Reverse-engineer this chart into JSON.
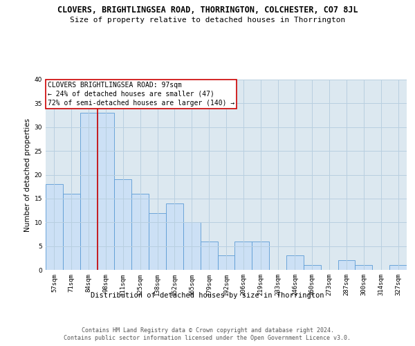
{
  "title_line1": "CLOVERS, BRIGHTLINGSEA ROAD, THORRINGTON, COLCHESTER, CO7 8JL",
  "title_line2": "Size of property relative to detached houses in Thorrington",
  "xlabel": "Distribution of detached houses by size in Thorrington",
  "ylabel": "Number of detached properties",
  "categories": [
    "57sqm",
    "71sqm",
    "84sqm",
    "98sqm",
    "111sqm",
    "125sqm",
    "138sqm",
    "152sqm",
    "165sqm",
    "179sqm",
    "192sqm",
    "206sqm",
    "219sqm",
    "233sqm",
    "246sqm",
    "260sqm",
    "273sqm",
    "287sqm",
    "300sqm",
    "314sqm",
    "327sqm"
  ],
  "values": [
    18,
    16,
    33,
    33,
    19,
    16,
    12,
    14,
    10,
    6,
    3,
    6,
    6,
    0,
    3,
    1,
    0,
    2,
    1,
    0,
    1
  ],
  "bar_color": "#cce0f5",
  "bar_edge_color": "#5b9bd5",
  "vline_color": "#cc0000",
  "vline_index": 2.5,
  "annotation_text": "CLOVERS BRIGHTLINGSEA ROAD: 97sqm\n← 24% of detached houses are smaller (47)\n72% of semi-detached houses are larger (140) →",
  "annotation_box_color": "#ffffff",
  "annotation_box_edge_color": "#cc0000",
  "ylim": [
    0,
    40
  ],
  "yticks": [
    0,
    5,
    10,
    15,
    20,
    25,
    30,
    35,
    40
  ],
  "grid_color": "#b8cfe0",
  "background_color": "#dce8f0",
  "footer_text": "Contains HM Land Registry data © Crown copyright and database right 2024.\nContains public sector information licensed under the Open Government Licence v3.0.",
  "title_fontsize": 8.5,
  "subtitle_fontsize": 8,
  "axis_label_fontsize": 7.5,
  "tick_fontsize": 6.5,
  "annotation_fontsize": 7,
  "footer_fontsize": 6
}
